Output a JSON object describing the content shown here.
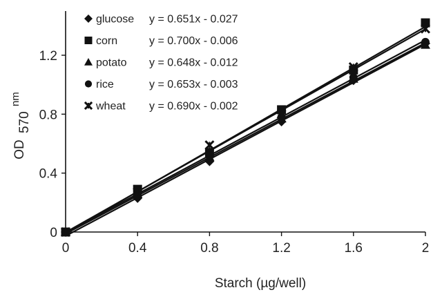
{
  "chart_data": {
    "type": "scatter",
    "title": "",
    "xlabel": "Starch (µg/well)",
    "ylabel": {
      "main": "OD",
      "sub": "570",
      "sup": "nm"
    },
    "xlim": [
      0,
      2
    ],
    "ylim": [
      0,
      1.5
    ],
    "x_ticks": [
      0,
      0.4,
      0.8,
      1.2,
      1.6,
      2
    ],
    "x_tick_labels": [
      "0",
      "0.4",
      "0.8",
      "1.2",
      "1.6",
      "2"
    ],
    "y_ticks": [
      0,
      0.4,
      0.8,
      1.2
    ],
    "y_tick_labels": [
      "0",
      "0.4",
      "0.8",
      "1.2"
    ],
    "grid": false,
    "legend_position": "top-left",
    "x": [
      0,
      0.4,
      0.8,
      1.2,
      1.6,
      2
    ],
    "series": [
      {
        "name": "glucose",
        "marker": "diamond",
        "equation": "y = 0.651x - 0.027",
        "slope": 0.651,
        "intercept": -0.027,
        "values": [
          0.0,
          0.23,
          0.48,
          0.75,
          1.03,
          1.28
        ]
      },
      {
        "name": "corn",
        "marker": "square",
        "equation": "y = 0.700x - 0.006",
        "slope": 0.7,
        "intercept": -0.006,
        "values": [
          0.0,
          0.29,
          0.54,
          0.83,
          1.1,
          1.42
        ]
      },
      {
        "name": "potato",
        "marker": "triangle",
        "equation": "y = 0.648x - 0.012",
        "slope": 0.648,
        "intercept": -0.012,
        "values": [
          0.0,
          0.26,
          0.51,
          0.77,
          1.04,
          1.27
        ]
      },
      {
        "name": "rice",
        "marker": "circle",
        "equation": "y = 0.653x - 0.003",
        "slope": 0.653,
        "intercept": -0.003,
        "values": [
          0.0,
          0.25,
          0.52,
          0.78,
          1.05,
          1.29
        ]
      },
      {
        "name": "wheat",
        "marker": "x-star",
        "equation": "y = 0.690x - 0.002",
        "slope": 0.69,
        "intercept": -0.002,
        "values": [
          0.0,
          0.27,
          0.59,
          0.8,
          1.12,
          1.38
        ]
      }
    ],
    "colors": {
      "ink": "#111111",
      "text": "#222222",
      "background": "#ffffff"
    }
  }
}
